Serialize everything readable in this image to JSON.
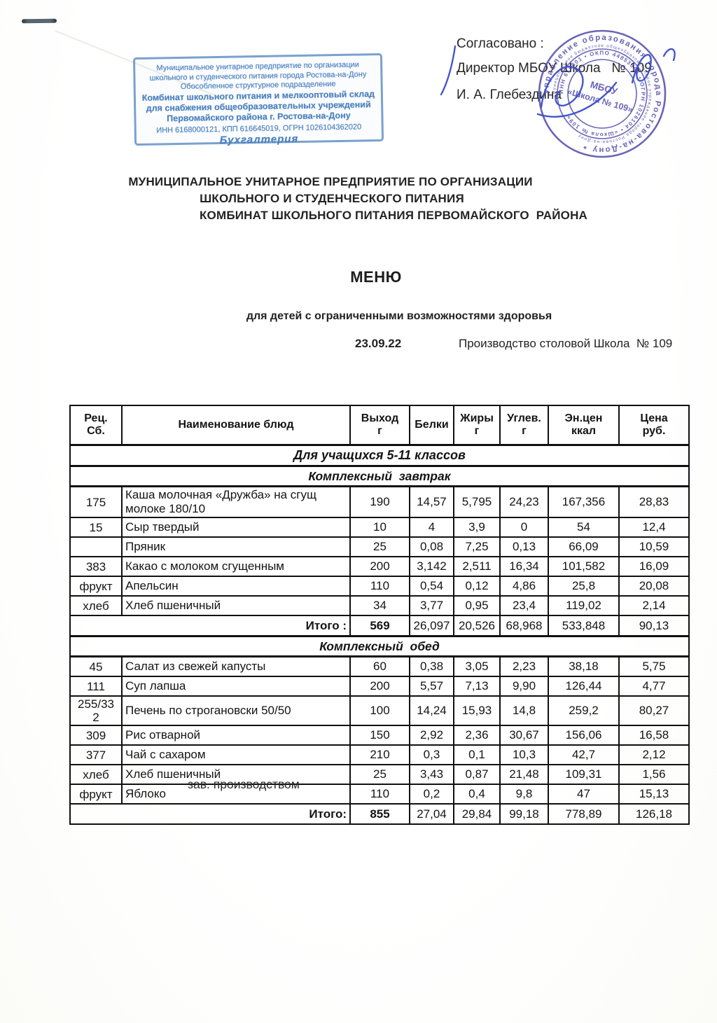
{
  "corner_stamp": {
    "lines": [
      "Муниципальное унитарное предприятие по организации",
      "школьного и студенческого питания города Ростова-на-Дону",
      "Обособленное структурное подразделение",
      "Комбинат школьного питания и мелкооптовый склад",
      "для снабжения общеобразовательных учреждений",
      "Первомайского района  г. Ростова-на-Дону",
      "ИНН 6168000121,  КПП 616645019,  ОГРН 1026104362020",
      "Бухгалтерия"
    ],
    "color": "#4a80bd"
  },
  "approval": {
    "agreed": "Согласовано :",
    "director": "Директор МБОУ Школа   № 109",
    "name": "И. А. Глебездина"
  },
  "round_stamp": {
    "ring_outer": "управление образования города Ростова-на-Дону ⋆ ",
    "ring_small": "муниципальное бюджетное общеобразовательное учреждение города Ростова-на-Дону",
    "ring_numbers": "ИНН 616801 • ОКПО 44853566 • ОГРН 1026104 • «Школа № 109»",
    "center_line1": "МБОУ",
    "center_line2": "«Школа № 109»",
    "color": "#5650ac"
  },
  "org_header": {
    "line1": "МУНИЦИПАЛЬНОЕ УНИТАРНОЕ ПРЕДПРИЯТИЕ ПО ОРГАНИЗАЦИИ",
    "line2": "ШКОЛЬНОГО И СТУДЕНЧЕСКОГО ПИТАНИЯ",
    "line3": "КОМБИНАТ ШКОЛЬНОГО ПИТАНИЯ ПЕРВОМАЙСКОГО  РАЙОНА"
  },
  "menu": {
    "title": "МЕНЮ",
    "subtitle": "для детей с ограниченными возможностями здоровья",
    "date": "23.09.22",
    "production": "Производство столовой Школа  № 109"
  },
  "table": {
    "headers": [
      {
        "l1": "Рец.",
        "l2": "Сб."
      },
      {
        "l1": "Наименование блюд",
        "l2": ""
      },
      {
        "l1": "Выход",
        "l2": "г"
      },
      {
        "l1": "Белки",
        "l2": ""
      },
      {
        "l1": "Жиры",
        "l2": "г"
      },
      {
        "l1": "Углев.",
        "l2": "г"
      },
      {
        "l1": "Эн.цен",
        "l2": "ккал"
      },
      {
        "l1": "Цена",
        "l2": "руб."
      }
    ],
    "group_header": "Для учащихся 5-11 классов",
    "sections": [
      {
        "title": "Комплексный  завтрак",
        "rows": [
          {
            "rec": "175",
            "name": "Каша молочная «Дружба» на сгущ\nмолоке 180/10",
            "out": "190",
            "protein": "14,57",
            "fat": "5,795",
            "carb": "24,23",
            "kcal": "167,356",
            "price": "28,83"
          },
          {
            "rec": "15",
            "name": "Сыр твердый",
            "out": "10",
            "protein": "4",
            "fat": "3,9",
            "carb": "0",
            "kcal": "54",
            "price": "12,4"
          },
          {
            "rec": "",
            "name": "Пряник",
            "out": "25",
            "protein": "0,08",
            "fat": "7,25",
            "carb": "0,13",
            "kcal": "66,09",
            "price": "10,59"
          },
          {
            "rec": "383",
            "name": "Какао с молоком сгущенным",
            "out": "200",
            "protein": "3,142",
            "fat": "2,511",
            "carb": "16,34",
            "kcal": "101,582",
            "price": "16,09"
          },
          {
            "rec": "фрукт",
            "name": "Апельсин",
            "out": "110",
            "protein": "0,54",
            "fat": "0,12",
            "carb": "4,86",
            "kcal": "25,8",
            "price": "20,08"
          },
          {
            "rec": "хлеб",
            "name": "Хлеб пшеничный",
            "out": "34",
            "protein": "3,77",
            "fat": "0,95",
            "carb": "23,4",
            "kcal": "119,02",
            "price": "2,14"
          }
        ],
        "total": {
          "label": "Итого :",
          "out": "569",
          "protein": "26,097",
          "fat": "20,526",
          "carb": "68,968",
          "kcal": "533,848",
          "price": "90,13"
        }
      },
      {
        "title": "Комплексный  обед",
        "rows": [
          {
            "rec": "45",
            "name": "Салат из свежей капусты",
            "out": "60",
            "protein": "0,38",
            "fat": "3,05",
            "carb": "2,23",
            "kcal": "38,18",
            "price": "5,75"
          },
          {
            "rec": "111",
            "name": "Суп лапша",
            "out": "200",
            "protein": "5,57",
            "fat": "7,13",
            "carb": "9,90",
            "kcal": "126,44",
            "price": "4,77"
          },
          {
            "rec": "255/33\n2",
            "name": "Печень по строгановски 50/50",
            "out": "100",
            "protein": "14,24",
            "fat": "15,93",
            "carb": "14,8",
            "kcal": "259,2",
            "price": "80,27"
          },
          {
            "rec": "309",
            "name": "Рис отварной",
            "out": "150",
            "protein": "2,92",
            "fat": "2,36",
            "carb": "30,67",
            "kcal": "156,06",
            "price": "16,58"
          },
          {
            "rec": "377",
            "name": "Чай с сахаром",
            "out": "210",
            "protein": "0,3",
            "fat": "0,1",
            "carb": "10,3",
            "kcal": "42,7",
            "price": "2,12"
          },
          {
            "rec": "хлеб",
            "name": "Хлеб пшеничный",
            "out": "25",
            "protein": "3,43",
            "fat": "0,87",
            "carb": "21,48",
            "kcal": "109,31",
            "price": "1,56"
          },
          {
            "rec": "фрукт",
            "name": "Яблоко",
            "out": "110",
            "protein": "0,2",
            "fat": "0,4",
            "carb": "9,8",
            "kcal": "47",
            "price": "15,13"
          }
        ],
        "total": {
          "label": "Итого:",
          "out": "855",
          "protein": "27,04",
          "fat": "29,84",
          "carb": "99,18",
          "kcal": "778,89",
          "price": "126,18"
        }
      }
    ]
  },
  "footer": {
    "signature_label": "зав. производством"
  }
}
